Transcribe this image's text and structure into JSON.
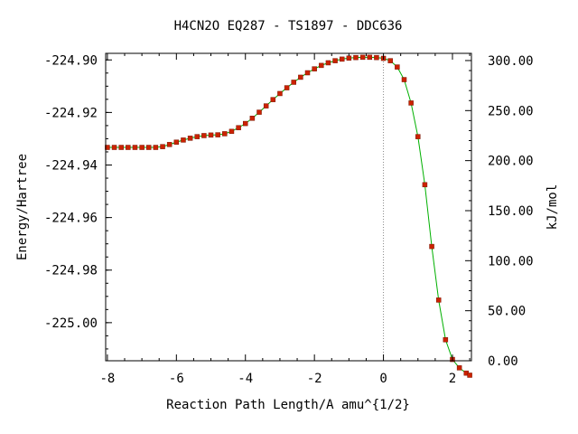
{
  "chart_data": {
    "type": "line",
    "title": "H4CN2O   EQ287 - TS1897 - DDC636",
    "xlabel": "Reaction Path Length/A amu^{1/2}",
    "ylabel": "Energy/Hartree",
    "y2label": "kJ/mol",
    "xlim": [
      -8.05,
      2.55
    ],
    "ylim": [
      -225.0145,
      -224.8975
    ],
    "y2lim": [
      0,
      307.2
    ],
    "xticks": [
      -8,
      -6,
      -4,
      -2,
      0,
      2
    ],
    "xtick_labels": [
      "-8",
      "-6",
      "-4",
      "-2",
      "0",
      "2"
    ],
    "yticks": [
      -224.9,
      -224.92,
      -224.94,
      -224.96,
      -224.98,
      -225.0
    ],
    "ytick_labels": [
      "-224.90",
      "-224.92",
      "-224.94",
      "-224.96",
      "-224.98",
      "-225.00"
    ],
    "y2ticks": [
      300,
      250,
      200,
      150,
      100,
      50,
      0
    ],
    "y2tick_labels": [
      "300.00",
      "250.00",
      "200.00",
      "150.00",
      "100.00",
      "50.00",
      "0.00"
    ],
    "ts_marker_x": 0,
    "grid": false,
    "colors": {
      "line": "#00b000",
      "marker": "#cc2200",
      "ts_line": "#888888",
      "axes": "#000000"
    },
    "series": [
      {
        "x": [
          -8.0,
          -7.8,
          -7.6,
          -7.4,
          -7.2,
          -7.0,
          -6.8,
          -6.6,
          -6.4,
          -6.2,
          -6.0,
          -5.8,
          -5.6,
          -5.4,
          -5.2,
          -5.0,
          -4.8,
          -4.6,
          -4.4,
          -4.2,
          -4.0,
          -3.8,
          -3.6,
          -3.4,
          -3.2,
          -3.0,
          -2.8,
          -2.6,
          -2.4,
          -2.2,
          -2.0,
          -1.8,
          -1.6,
          -1.4,
          -1.2,
          -1.0,
          -0.8,
          -0.6,
          -0.4,
          -0.2,
          0.0,
          0.2,
          0.4,
          0.6,
          0.8,
          1.0,
          1.2,
          1.4,
          1.6,
          1.8,
          2.0,
          2.2,
          2.4,
          2.5
        ],
        "y": [
          -224.9333,
          -224.9333,
          -224.9333,
          -224.9333,
          -224.9333,
          -224.9333,
          -224.9333,
          -224.9333,
          -224.933,
          -224.9322,
          -224.9313,
          -224.9305,
          -224.9298,
          -224.9292,
          -224.9288,
          -224.9286,
          -224.9285,
          -224.9281,
          -224.9272,
          -224.9258,
          -224.9242,
          -224.9222,
          -224.9199,
          -224.9175,
          -224.9151,
          -224.9128,
          -224.9106,
          -224.9085,
          -224.9066,
          -224.9049,
          -224.9034,
          -224.9021,
          -224.9011,
          -224.9003,
          -224.8997,
          -224.8993,
          -224.8991,
          -224.899,
          -224.899,
          -224.8991,
          -224.8994,
          -224.9003,
          -224.9027,
          -224.9075,
          -224.9164,
          -224.9292,
          -224.9475,
          -224.971,
          -224.9914,
          -225.0065,
          -225.014,
          -225.0172,
          -225.0192,
          -225.02
        ]
      }
    ]
  }
}
